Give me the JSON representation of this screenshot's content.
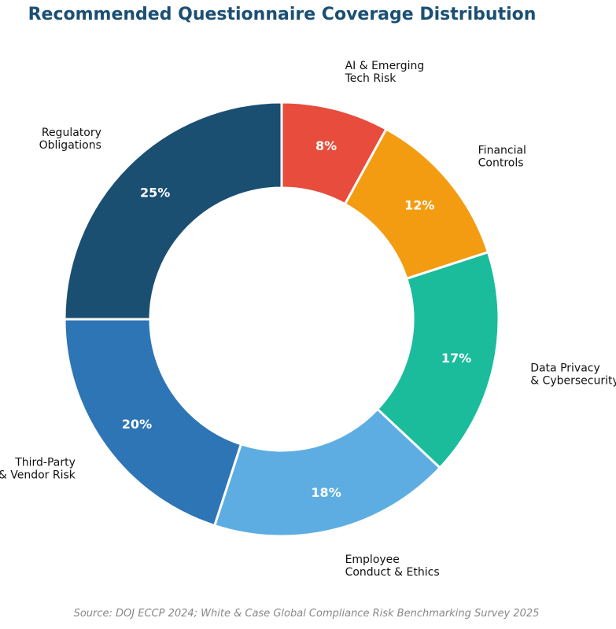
{
  "chart_data": {
    "type": "pie",
    "title": "Recommended Questionnaire Coverage Distribution",
    "slices": [
      {
        "name_lines": [
          "AI & Emerging",
          "Tech Risk"
        ],
        "value": 8,
        "label": "8%",
        "color": "#e74c3c"
      },
      {
        "name_lines": [
          "Financial",
          "Controls"
        ],
        "value": 12,
        "label": "12%",
        "color": "#f39c12"
      },
      {
        "name_lines": [
          "Data Privacy",
          "& Cybersecurity"
        ],
        "value": 17,
        "label": "17%",
        "color": "#1abc9c"
      },
      {
        "name_lines": [
          "Employee",
          "Conduct & Ethics"
        ],
        "value": 18,
        "label": "18%",
        "color": "#5dade2"
      },
      {
        "name_lines": [
          "Third-Party",
          "& Vendor Risk"
        ],
        "value": 20,
        "label": "20%",
        "color": "#2e75b6"
      },
      {
        "name_lines": [
          "Regulatory",
          "Obligations"
        ],
        "value": 25,
        "label": "25%",
        "color": "#1b4f72"
      }
    ],
    "source": "Source: DOJ ECCP 2024; White & Case Global Compliance Risk Benchmarking Survey 2025"
  }
}
